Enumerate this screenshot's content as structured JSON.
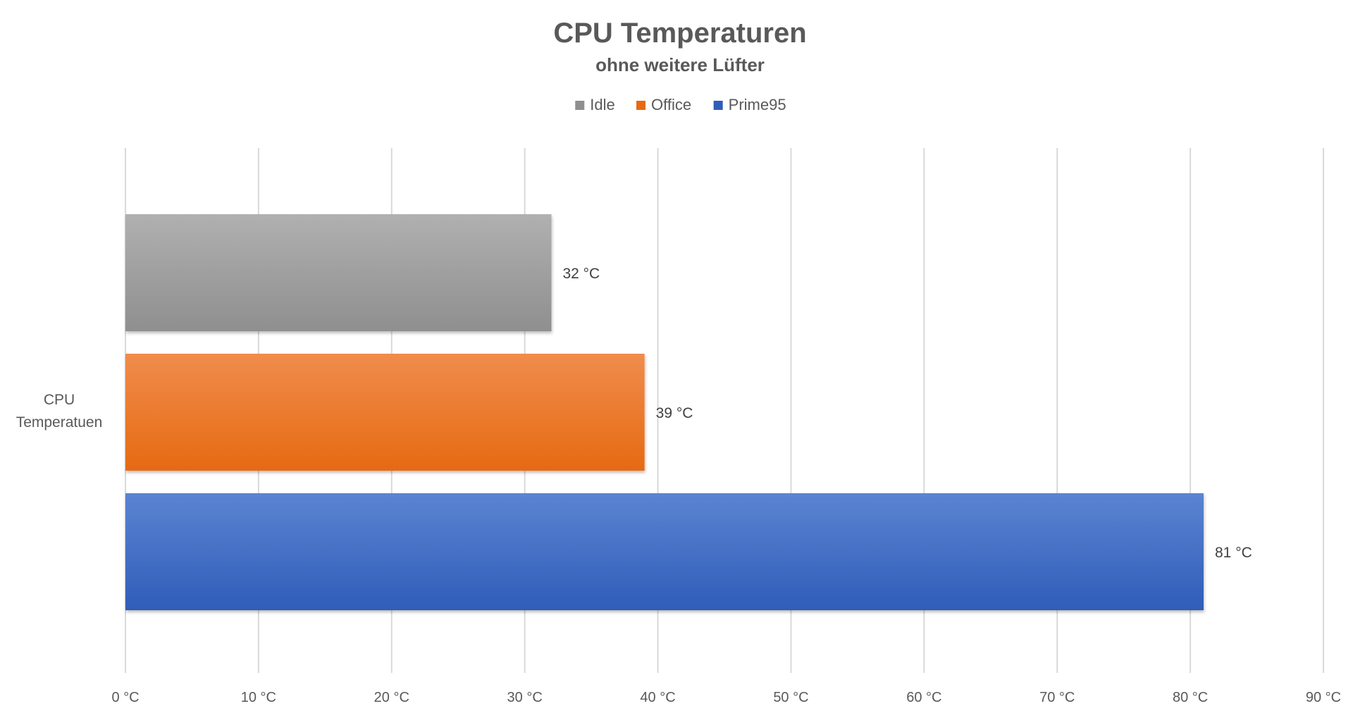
{
  "chart_data": {
    "type": "bar",
    "orientation": "horizontal",
    "title": "CPU Temperaturen",
    "subtitle": "ohne weitere Lüfter",
    "categories": [
      "CPU Temperatuen"
    ],
    "category_label_lines": [
      "CPU",
      "Temperatuen"
    ],
    "series": [
      {
        "name": "Idle",
        "values": [
          32
        ],
        "label": "32 °C"
      },
      {
        "name": "Office",
        "values": [
          39
        ],
        "label": "39 °C"
      },
      {
        "name": "Prime95",
        "values": [
          81
        ],
        "label": "81 °C"
      }
    ],
    "xlim": [
      0,
      90
    ],
    "x_ticks": [
      0,
      10,
      20,
      30,
      40,
      50,
      60,
      70,
      80,
      90
    ],
    "x_tick_labels": [
      "0 °C",
      "10 °C",
      "20 °C",
      "30 °C",
      "40 °C",
      "50 °C",
      "60 °C",
      "70 °C",
      "80 °C",
      "90 °C"
    ],
    "grid": "vertical",
    "legend_position": "top-center",
    "colors": {
      "Idle": {
        "top": "#b0b0b0",
        "bottom": "#8f8f8f"
      },
      "Office": {
        "top": "#f08c4c",
        "bottom": "#e66a12"
      },
      "Prime95": {
        "top": "#5b84d2",
        "bottom": "#2f5db8"
      },
      "grid": "#d9d9d9",
      "text": "#595959"
    }
  }
}
